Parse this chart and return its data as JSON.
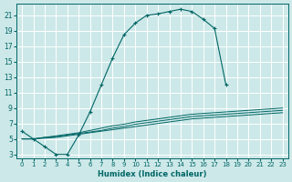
{
  "background_color": "#cde8e8",
  "grid_color": "#ffffff",
  "line_color": "#006666",
  "xlabel": "Humidex (Indice chaleur)",
  "xlim": [
    -0.5,
    23.5
  ],
  "ylim": [
    2.5,
    22.5
  ],
  "yticks": [
    3,
    5,
    7,
    9,
    11,
    13,
    15,
    17,
    19,
    21
  ],
  "xticks": [
    0,
    1,
    2,
    3,
    4,
    5,
    6,
    7,
    8,
    9,
    10,
    11,
    12,
    13,
    14,
    15,
    16,
    17,
    18,
    19,
    20,
    21,
    22,
    23
  ],
  "line1_x": [
    0,
    1,
    2,
    3,
    4,
    5,
    6,
    7,
    8,
    9,
    10,
    11,
    12,
    13,
    14,
    15,
    16,
    17,
    18
  ],
  "line1_y": [
    6.0,
    5.0,
    4.0,
    3.0,
    3.0,
    5.5,
    8.5,
    12.0,
    15.5,
    18.5,
    20.0,
    21.0,
    21.2,
    21.5,
    21.8,
    21.5,
    20.5,
    19.3,
    12.0
  ],
  "line2_x": [
    0,
    1,
    2,
    3,
    4,
    5,
    6,
    7,
    8,
    9,
    10,
    11,
    12,
    13,
    14,
    15,
    16,
    17,
    18,
    19,
    20,
    21,
    22,
    23
  ],
  "line2_y": [
    5.0,
    5.0,
    5.2,
    5.3,
    5.5,
    5.7,
    5.9,
    6.1,
    6.4,
    6.6,
    6.9,
    7.1,
    7.3,
    7.5,
    7.7,
    7.9,
    8.0,
    8.1,
    8.2,
    8.3,
    8.4,
    8.5,
    8.6,
    8.7
  ],
  "line3_x": [
    0,
    1,
    2,
    3,
    4,
    5,
    6,
    7,
    8,
    9,
    10,
    11,
    12,
    13,
    14,
    15,
    16,
    17,
    18,
    19,
    20,
    21,
    22,
    23
  ],
  "line3_y": [
    5.0,
    5.0,
    5.2,
    5.4,
    5.6,
    5.8,
    6.1,
    6.4,
    6.7,
    6.9,
    7.2,
    7.4,
    7.6,
    7.8,
    8.0,
    8.2,
    8.3,
    8.4,
    8.5,
    8.6,
    8.7,
    8.8,
    8.9,
    9.0
  ],
  "line4_x": [
    0,
    1,
    2,
    3,
    4,
    5,
    6,
    7,
    8,
    9,
    10,
    11,
    12,
    13,
    14,
    15,
    16,
    17,
    18,
    19,
    20,
    21,
    22,
    23
  ],
  "line4_y": [
    5.0,
    5.0,
    5.1,
    5.2,
    5.4,
    5.6,
    5.8,
    6.0,
    6.2,
    6.4,
    6.6,
    6.8,
    7.0,
    7.2,
    7.4,
    7.6,
    7.7,
    7.8,
    7.9,
    8.0,
    8.1,
    8.2,
    8.3,
    8.4
  ]
}
